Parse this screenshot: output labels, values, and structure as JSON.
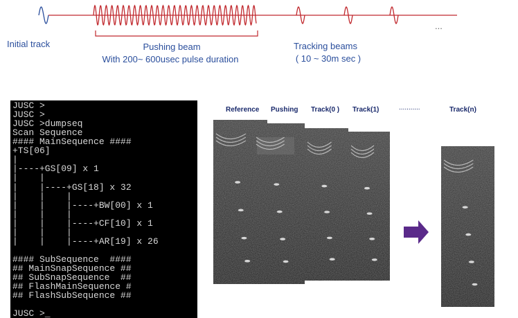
{
  "timeline": {
    "initial": "Initial track",
    "pushing_title": "Pushing beam",
    "pushing_detail": "With 200~ 600usec pulse duration",
    "tracking_title": "Tracking beams",
    "tracking_detail": "( 10 ~ 30m sec )",
    "ellipsis": "..."
  },
  "terminal": {
    "lines": [
      "JUSC >",
      "JUSC >",
      "JUSC >dumpseq",
      "Scan Sequence",
      "#### MainSequence ####",
      "+TS[06]",
      "|",
      "|----+GS[09] x 1",
      "|    |",
      "|    |----+GS[18] x 32",
      "|    |    |",
      "|    |    |----+BW[00] x 1",
      "|    |    |",
      "|    |    |----+CF[10] x 1",
      "|    |    |",
      "|    |    |----+AR[19] x 26",
      "#### SubSequence  ####",
      "## MainSnapSequence ##",
      "## SubSnapSequence  ##",
      "## FlashMainSequence #",
      "## FlashSubSequence ##",
      "JUSC >_"
    ]
  },
  "images": {
    "labels": [
      "Reference",
      "Pushing",
      "Track(0 )",
      "Track(1)",
      "...........",
      "Track(n)"
    ]
  }
}
